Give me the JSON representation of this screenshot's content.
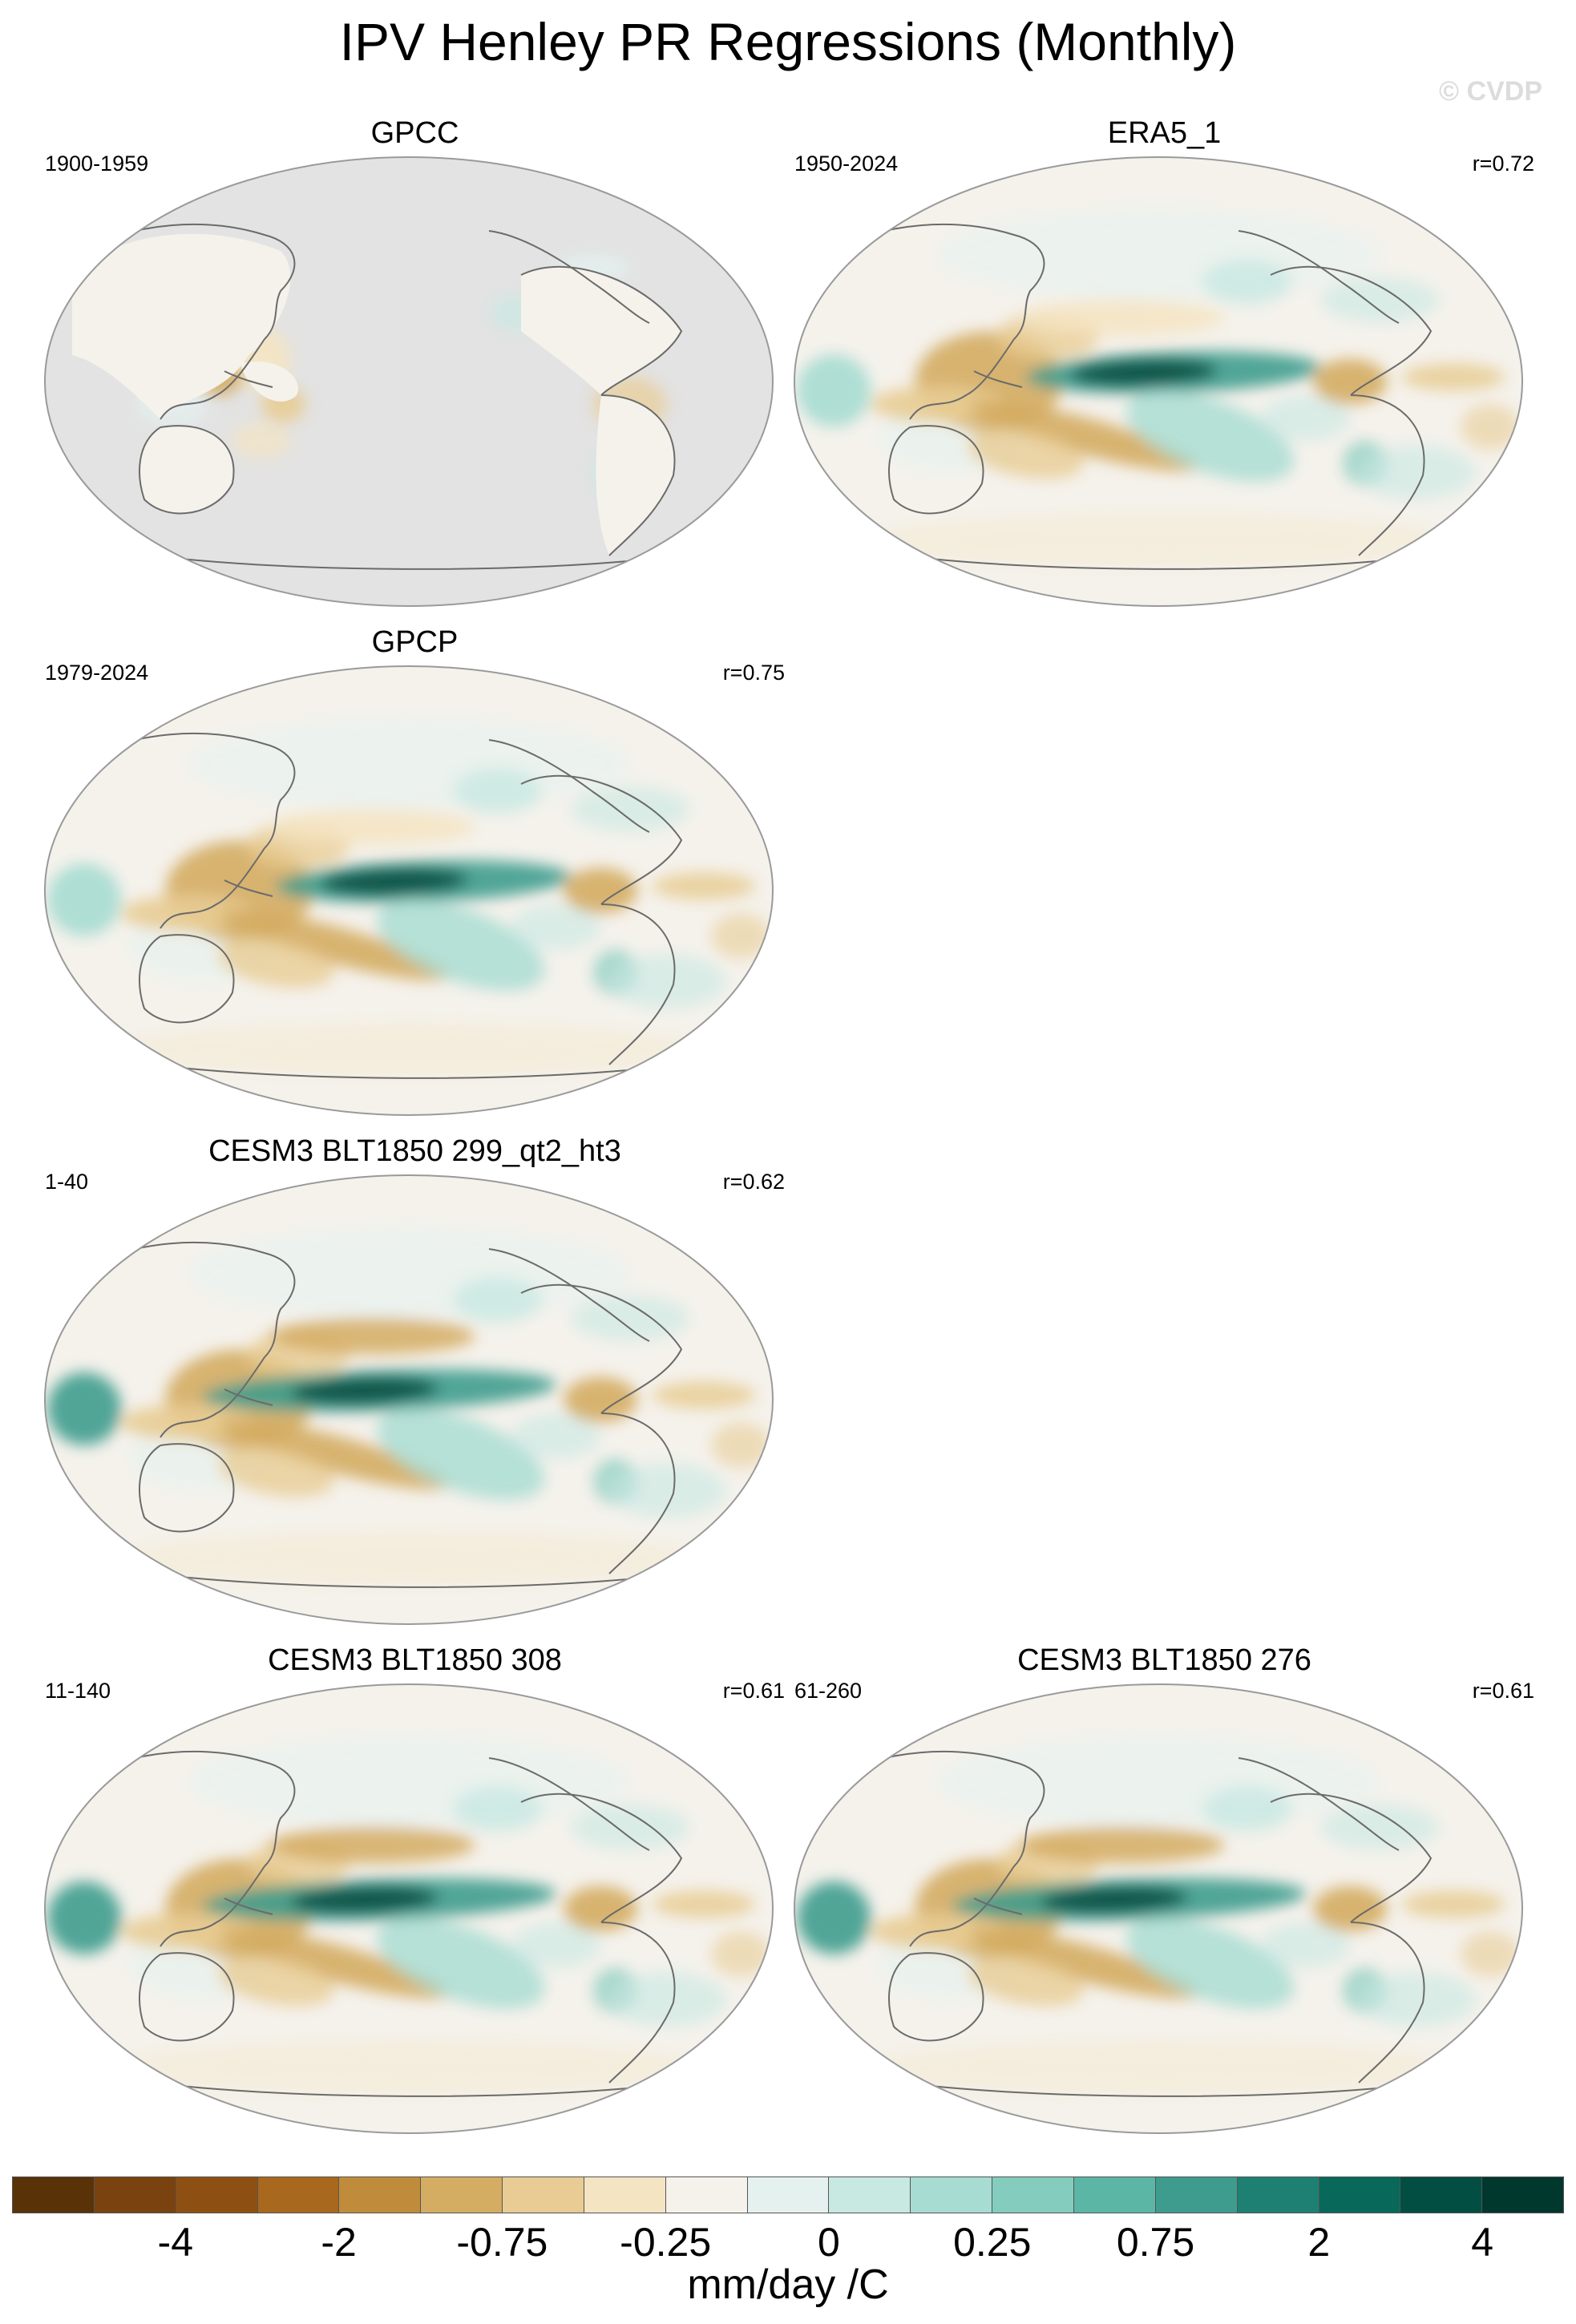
{
  "title": "IPV Henley PR Regressions (Monthly)",
  "watermark": "© CVDP",
  "panels": [
    {
      "title": "GPCC",
      "period": "1900-1959",
      "corr": "",
      "pattern": "land"
    },
    {
      "title": "ERA5_1",
      "period": "1950-2024",
      "corr": "r=0.72",
      "pattern": "full"
    },
    {
      "title": "GPCP",
      "period": "1979-2024",
      "corr": "r=0.75",
      "pattern": "full"
    },
    {
      "title": "CESM3 BLT1850 299_qt2_ht3",
      "period": "1-40",
      "corr": "r=0.62",
      "pattern": "model"
    },
    {
      "title": "CESM3 BLT1850 308",
      "period": "11-140",
      "corr": "r=0.61",
      "pattern": "model"
    },
    {
      "title": "CESM3 BLT1850 276",
      "period": "61-260",
      "corr": "r=0.61",
      "pattern": "model"
    }
  ],
  "colorbar": {
    "colors": [
      "#5a3208",
      "#7a420e",
      "#8e5012",
      "#a8681e",
      "#c08c3c",
      "#d4ac62",
      "#e8cc94",
      "#f4e4c2",
      "#f5f2ec",
      "#e4f1ef",
      "#c8e8e2",
      "#a6dcd2",
      "#84ccbe",
      "#5cb6a6",
      "#3e9c8e",
      "#1e8073",
      "#08685a",
      "#024e42",
      "#01382e"
    ],
    "labels": [
      "-4",
      "-2",
      "-0.75",
      "-0.25",
      "0",
      "0.25",
      "0.75",
      "2",
      "4"
    ],
    "units": "mm/day /C"
  }
}
